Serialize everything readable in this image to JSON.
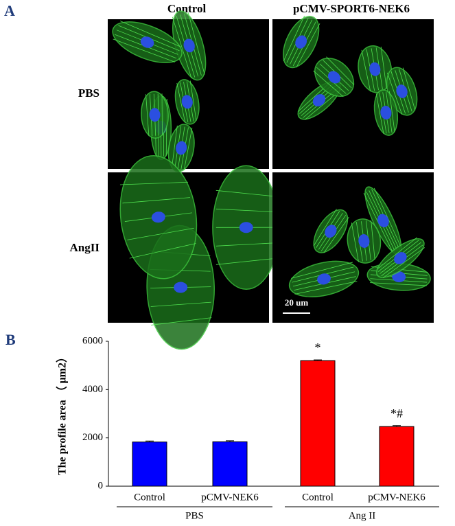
{
  "figure": {
    "panel_a": "A",
    "panel_b": "B",
    "columns": [
      "Control",
      "pCMV-SPORT6-NEK6"
    ],
    "rows": [
      "PBS",
      "AngII"
    ],
    "scale_bar": "20 um"
  },
  "chart_data": {
    "type": "bar",
    "ylabel": "The profile area （ μm2）",
    "categories": [
      "Control",
      "pCMV-NEK6",
      "Control",
      "pCMV-NEK6"
    ],
    "groups": [
      "PBS",
      "Ang II"
    ],
    "values": [
      1830,
      1840,
      5200,
      2470
    ],
    "errors": [
      40,
      40,
      30,
      40
    ],
    "colors": [
      "#0000ff",
      "#0000ff",
      "#ff0000",
      "#ff0000"
    ],
    "annotations": [
      null,
      null,
      "*",
      "*#"
    ],
    "ylim": [
      0,
      6000
    ],
    "yticks": [
      0,
      2000,
      4000,
      6000
    ]
  }
}
